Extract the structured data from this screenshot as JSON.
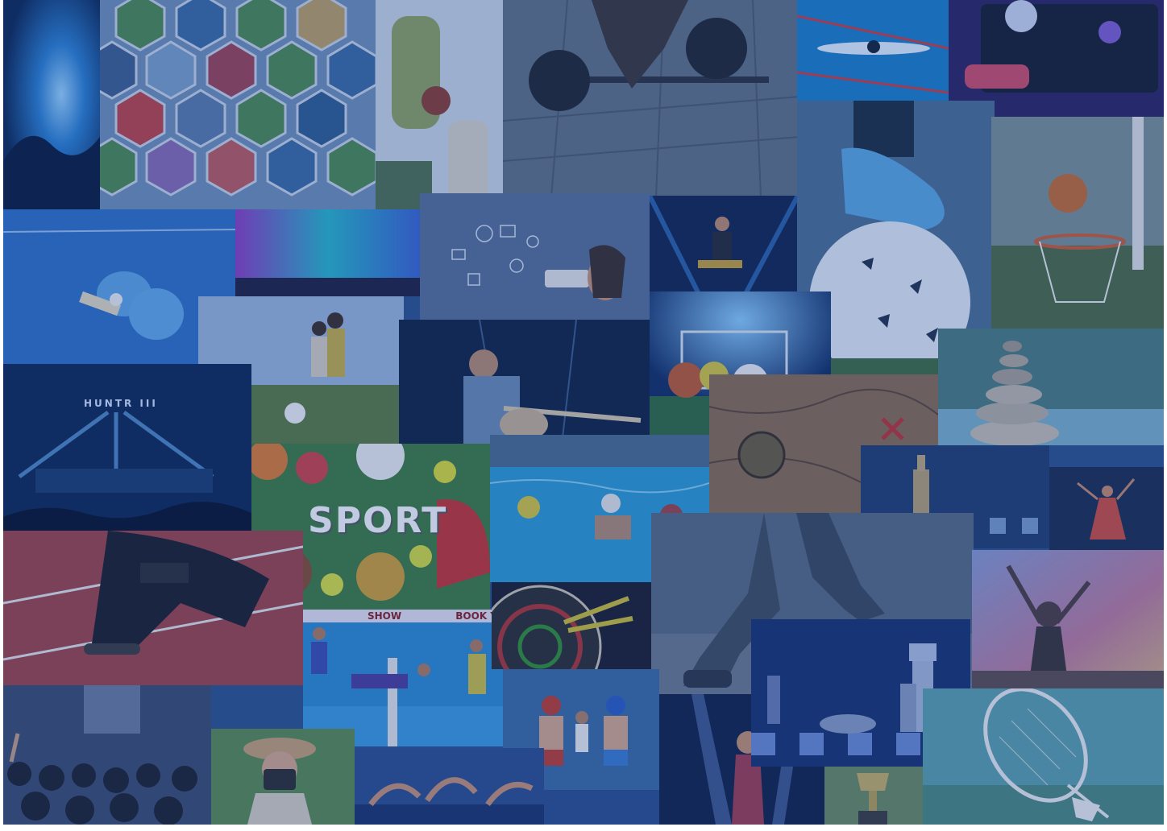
{
  "collage": {
    "overlay_tint": "#1e4696",
    "texts": {
      "sport_word": "SPORT",
      "kabaddi_banner_left": "SHOW",
      "kabaddi_banner_right": "BOOK Y",
      "stage_sign": "HUNTR III"
    },
    "tiles": [
      "concert-light-beams",
      "sports-hexagon-montage",
      "cricket-batsman",
      "barbell-deadlift",
      "swimmer-butterfly",
      "dj-mixer",
      "table-tennis-paddles",
      "colorful-stage-lights",
      "camera-doodles-photographer",
      "rock-guitarist-stage",
      "soccer-shoe-ball",
      "basketball-hoop",
      "kids-playing-soccer",
      "singer-with-guitar",
      "stadium-balls",
      "treasure-map-compass",
      "stone-cairn",
      "concert-stage-crowd",
      "sport-equipment-flatlay",
      "water-polo",
      "chess-king",
      "classical-dancer",
      "sprinter-starting-block",
      "kabaddi-match",
      "dartboard",
      "runner-legs",
      "festival-dancer",
      "conference-audience",
      "woman-photographer",
      "boxing-match",
      "floor-dancers",
      "female-singer-spotlight",
      "chess-pieces",
      "trophy",
      "badminton-racket-shuttle"
    ]
  }
}
